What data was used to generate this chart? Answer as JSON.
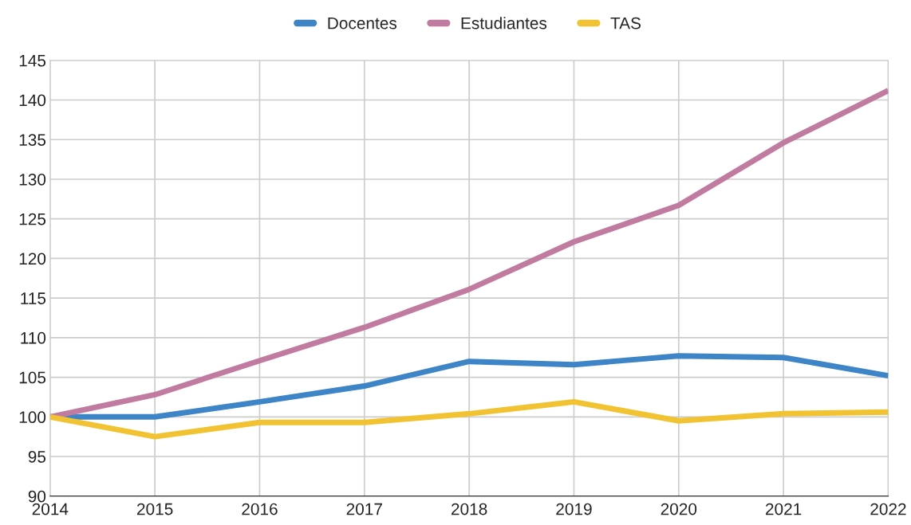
{
  "chart_data": {
    "type": "line",
    "x": [
      2014,
      2015,
      2016,
      2017,
      2018,
      2019,
      2020,
      2021,
      2022
    ],
    "series": [
      {
        "name": "Docentes",
        "color": "#3d85c6",
        "values": [
          100,
          100,
          101.9,
          103.9,
          107.0,
          106.6,
          107.7,
          107.5,
          105.2
        ]
      },
      {
        "name": "Estudiantes",
        "color": "#c27ba0",
        "values": [
          100,
          102.8,
          107.1,
          111.3,
          116.1,
          122.1,
          126.7,
          134.6,
          141.2
        ]
      },
      {
        "name": "TAS",
        "color": "#f1c232",
        "values": [
          100,
          97.5,
          99.3,
          99.3,
          100.4,
          101.9,
          99.5,
          100.4,
          100.6
        ]
      }
    ],
    "xlim": [
      2014,
      2022
    ],
    "xticks": [
      2014,
      2015,
      2016,
      2017,
      2018,
      2019,
      2020,
      2021,
      2022
    ],
    "ylim": [
      90,
      145
    ],
    "yticks": [
      90,
      95,
      100,
      105,
      110,
      115,
      120,
      125,
      130,
      135,
      140,
      145
    ],
    "grid": true,
    "legend": "top",
    "marker": "none",
    "line_style": "solid"
  }
}
